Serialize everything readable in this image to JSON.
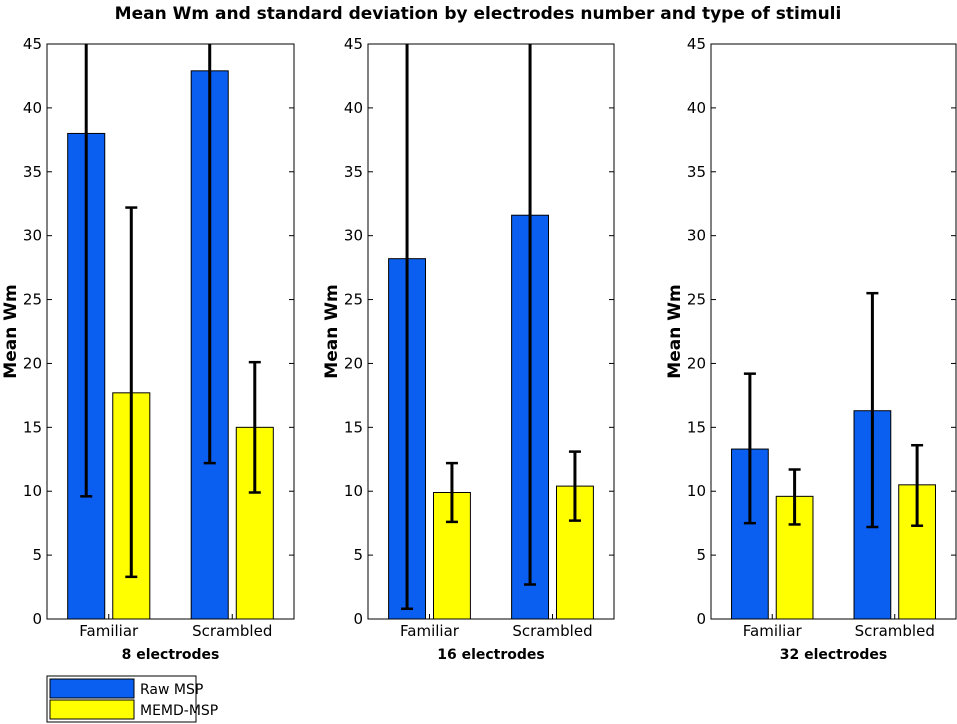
{
  "chart_data": {
    "type": "bar",
    "title": "Mean Wm and standard deviation by electrodes number and type of stimuli",
    "ylabel": "Mean Wm",
    "ylim": [
      0,
      45
    ],
    "yticks": [
      0,
      5,
      10,
      15,
      20,
      25,
      30,
      35,
      40,
      45
    ],
    "categories": [
      "Familiar",
      "Scrambled"
    ],
    "legend": [
      {
        "name": "Raw MSP",
        "color": "#0a5ff0"
      },
      {
        "name": "MEMD-MSP",
        "color": "#ffff00"
      }
    ],
    "panels": [
      {
        "xlabel": "8 electrodes",
        "series": [
          {
            "name": "Raw MSP",
            "color": "#0a5ff0",
            "values": [
              38.0,
              42.9
            ],
            "err_low": [
              9.6,
              12.2
            ],
            "err_high": [
              45.0,
              45.0
            ]
          },
          {
            "name": "MEMD-MSP",
            "color": "#ffff00",
            "values": [
              17.7,
              15.0
            ],
            "err_low": [
              3.3,
              9.9
            ],
            "err_high": [
              32.2,
              20.1
            ]
          }
        ]
      },
      {
        "xlabel": "16 electrodes",
        "series": [
          {
            "name": "Raw MSP",
            "color": "#0a5ff0",
            "values": [
              28.2,
              31.6
            ],
            "err_low": [
              0.8,
              2.7
            ],
            "err_high": [
              45.0,
              45.0
            ]
          },
          {
            "name": "MEMD-MSP",
            "color": "#ffff00",
            "values": [
              9.9,
              10.4
            ],
            "err_low": [
              7.6,
              7.7
            ],
            "err_high": [
              12.2,
              13.1
            ]
          }
        ]
      },
      {
        "xlabel": "32 electrodes",
        "series": [
          {
            "name": "Raw MSP",
            "color": "#0a5ff0",
            "values": [
              13.3,
              16.3
            ],
            "err_low": [
              7.5,
              7.2
            ],
            "err_high": [
              19.2,
              25.5
            ]
          },
          {
            "name": "MEMD-MSP",
            "color": "#ffff00",
            "values": [
              9.6,
              10.5
            ],
            "err_low": [
              7.4,
              7.3
            ],
            "err_high": [
              11.7,
              13.6
            ]
          }
        ]
      }
    ]
  }
}
